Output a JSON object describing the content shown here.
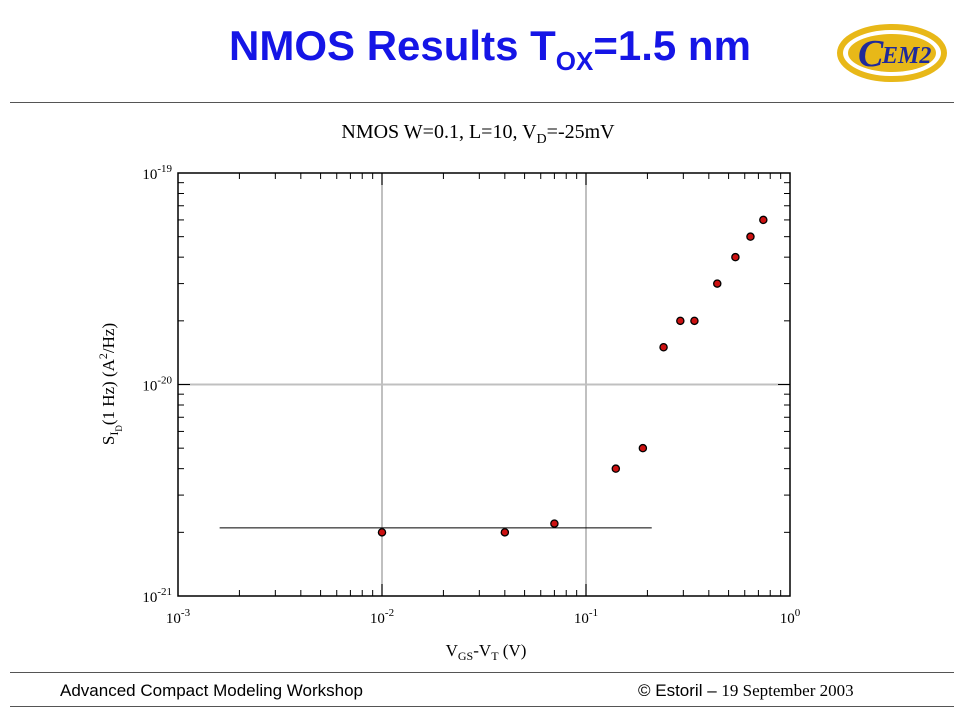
{
  "header": {
    "title_main": "NMOS Results T",
    "title_sub": "OX",
    "title_tail": "=1.5 nm"
  },
  "logo": {
    "text": "EM2",
    "letter": "C",
    "colors": {
      "ring": "#e8b818",
      "text": "#1f2a9a"
    }
  },
  "chart_data": {
    "type": "scatter",
    "title": "NMOS W=0.1, L=10, VD=-25mV",
    "xlabel": "VGS-VT (V)",
    "ylabel": "SID(1 Hz) (A2/Hz)",
    "x_scale": "log",
    "y_scale": "log",
    "xlim": [
      0.001,
      1
    ],
    "ylim": [
      1e-21,
      1e-19
    ],
    "grid": true,
    "x_ticks": [
      {
        "base": "10",
        "exp": "-3"
      },
      {
        "base": "10",
        "exp": "-2"
      },
      {
        "base": "10",
        "exp": "-1"
      },
      {
        "base": "10",
        "exp": "0"
      }
    ],
    "y_ticks": [
      {
        "base": "10",
        "exp": "-21"
      },
      {
        "base": "10",
        "exp": "-20"
      },
      {
        "base": "10",
        "exp": "-19"
      }
    ],
    "series": [
      {
        "color": "#cc1111",
        "points": [
          {
            "x": 0.01,
            "y": 2e-21
          },
          {
            "x": 0.04,
            "y": 2e-21
          },
          {
            "x": 0.07,
            "y": 2.2e-21
          },
          {
            "x": 0.14,
            "y": 4e-21
          },
          {
            "x": 0.19,
            "y": 5e-21
          },
          {
            "x": 0.24,
            "y": 1.5e-20
          },
          {
            "x": 0.29,
            "y": 2e-20
          },
          {
            "x": 0.34,
            "y": 2e-20
          },
          {
            "x": 0.44,
            "y": 3e-20
          },
          {
            "x": 0.54,
            "y": 4e-20
          },
          {
            "x": 0.64,
            "y": 5e-20
          },
          {
            "x": 0.74,
            "y": 6e-20
          }
        ]
      }
    ],
    "reference_line": {
      "x_start": 0.0016,
      "x_end": 0.21,
      "y": 2.1e-21
    }
  },
  "footer": {
    "left": "Advanced Compact Modeling Workshop",
    "right_copy": "© Estoril –",
    "right_date": "19 September 2003"
  }
}
